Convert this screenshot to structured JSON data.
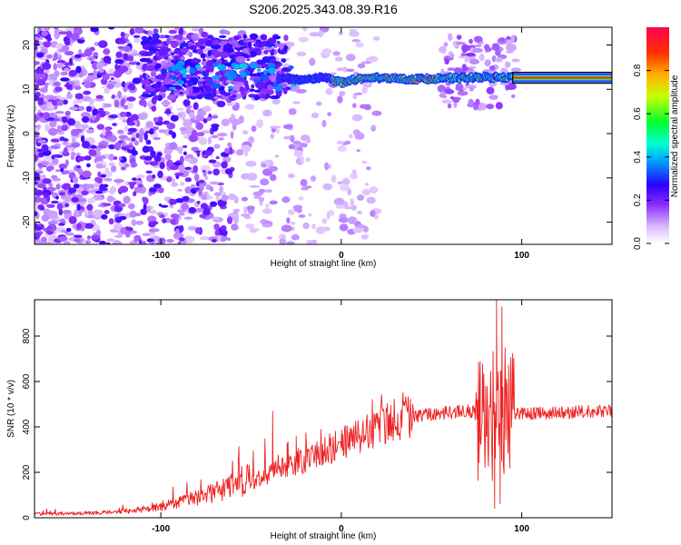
{
  "title": "S206.2025.343.08.39.R16",
  "chart_data": [
    {
      "type": "heatmap",
      "xlabel": "Height of straight line (km)",
      "ylabel": "Frequency (Hz)",
      "xlim": [
        -170,
        150
      ],
      "ylim": [
        -25,
        24
      ],
      "x_ticks": [
        -100,
        0,
        100
      ],
      "y_ticks": [
        -20,
        -10,
        0,
        10,
        20
      ],
      "colorbar": {
        "label": "Normalized spectral amplitude",
        "range": [
          0,
          1
        ],
        "ticks": [
          "0.0",
          "0.2",
          "0.4",
          "0.6",
          "0.8"
        ],
        "colors": [
          "#ffffff",
          "#b07cff",
          "#6a00e8",
          "#0000ff",
          "#00e5ff",
          "#00ff40",
          "#e8ff00",
          "#ff8000",
          "#ff0040"
        ]
      },
      "ridge": {
        "description_values": "dominant frequency ridge",
        "x": [
          -35,
          -20,
          -10,
          0,
          10,
          20,
          40,
          60,
          80,
          95,
          150
        ],
        "y": [
          12.5,
          12.2,
          12.8,
          11.5,
          12.4,
          12.6,
          12.3,
          12.5,
          12.7,
          12.6,
          12.6
        ]
      }
    },
    {
      "type": "line",
      "xlabel": "Height of straight line (km)",
      "ylabel": "SNR (10 * v/v)",
      "xlim": [
        -170,
        150
      ],
      "ylim": [
        0,
        960
      ],
      "x_ticks": [
        -100,
        0,
        100
      ],
      "y_ticks": [
        0,
        200,
        400,
        600,
        800
      ],
      "color": "#ee2222",
      "envelope": {
        "x": [
          -170,
          -140,
          -120,
          -100,
          -80,
          -60,
          -40,
          -30,
          -20,
          -10,
          0,
          10,
          20,
          30,
          40,
          50,
          60,
          70,
          75,
          80,
          85,
          90,
          95,
          100,
          110,
          120,
          130,
          140,
          150
        ],
        "y": [
          15,
          18,
          25,
          45,
          80,
          130,
          190,
          230,
          250,
          290,
          330,
          360,
          400,
          430,
          445,
          455,
          465,
          470,
          460,
          450,
          460,
          455,
          455,
          460,
          460,
          462,
          465,
          468,
          470
        ]
      },
      "spikes": [
        {
          "x": -38,
          "y": 470
        },
        {
          "x": -30,
          "y": 330
        },
        {
          "x": -25,
          "y": 360
        },
        {
          "x": 77,
          "y": 690
        },
        {
          "x": 80,
          "y": 580
        },
        {
          "x": 86,
          "y": 960
        },
        {
          "x": 89,
          "y": 930
        },
        {
          "x": 85,
          "y": 40
        },
        {
          "x": 88,
          "y": 60
        }
      ]
    }
  ]
}
